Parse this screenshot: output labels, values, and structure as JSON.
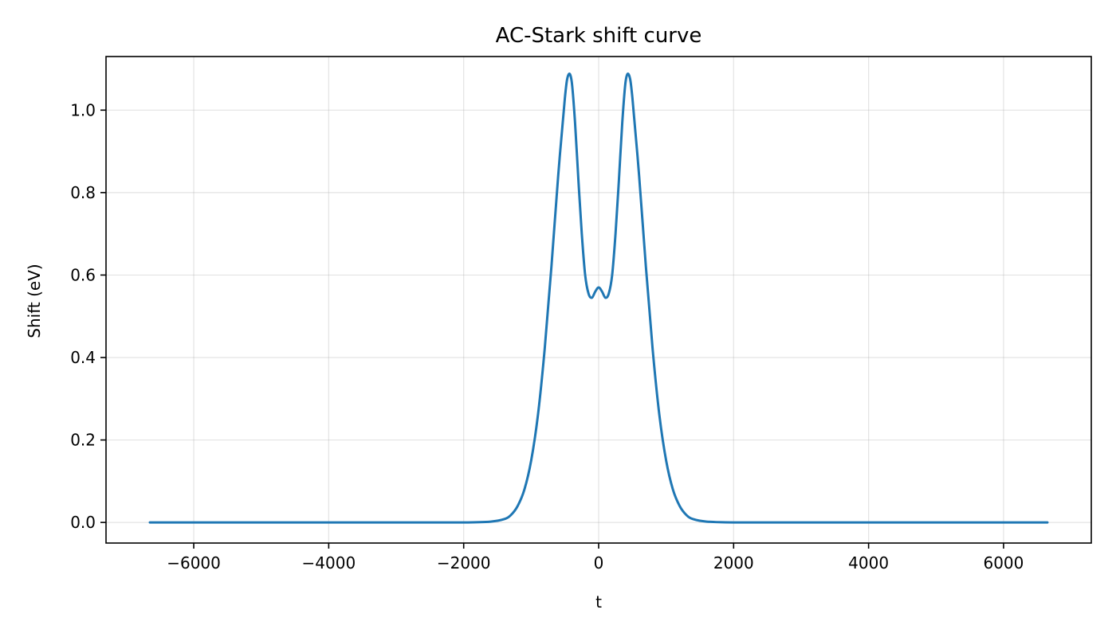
{
  "chart_data": {
    "type": "line",
    "title": "AC-Stark shift curve",
    "xlabel": "t",
    "ylabel": "Shift (eV)",
    "xlim": [
      -7300,
      7300
    ],
    "ylim": [
      -0.05,
      1.13
    ],
    "x_ticks": [
      -6000,
      -4000,
      -2000,
      0,
      2000,
      4000,
      6000
    ],
    "x_tick_labels": [
      "−6000",
      "−4000",
      "−2000",
      "0",
      "2000",
      "4000",
      "6000"
    ],
    "y_ticks": [
      0.0,
      0.2,
      0.4,
      0.6,
      0.8,
      1.0
    ],
    "y_tick_labels": [
      "0.0",
      "0.2",
      "0.4",
      "0.6",
      "0.8",
      "1.0"
    ],
    "grid": true,
    "legend": "none",
    "line_color": "#1f77b4",
    "series": [
      {
        "x": [
          -6650,
          -5000,
          -3000,
          -2000,
          -1600,
          -1400,
          -1300,
          -1200,
          -1100,
          -1000,
          -900,
          -800,
          -700,
          -600,
          -500,
          -450,
          -400,
          -350,
          -300,
          -250,
          -200,
          -150,
          -100,
          -50,
          0,
          50,
          100,
          150,
          200,
          250,
          300,
          350,
          400,
          450,
          500,
          600,
          700,
          800,
          900,
          1000,
          1100,
          1200,
          1300,
          1400,
          1600,
          2000,
          3000,
          5000,
          6650
        ],
        "values": [
          0.0,
          0.0,
          0.0,
          0.0,
          0.002,
          0.008,
          0.018,
          0.04,
          0.08,
          0.15,
          0.26,
          0.42,
          0.62,
          0.84,
          1.03,
          1.085,
          1.07,
          0.97,
          0.83,
          0.7,
          0.6,
          0.555,
          0.545,
          0.56,
          0.57,
          0.56,
          0.545,
          0.555,
          0.6,
          0.7,
          0.83,
          0.97,
          1.07,
          1.085,
          1.03,
          0.84,
          0.62,
          0.42,
          0.26,
          0.15,
          0.08,
          0.04,
          0.018,
          0.008,
          0.002,
          0.0,
          0.0,
          0.0,
          0.0
        ]
      }
    ]
  }
}
